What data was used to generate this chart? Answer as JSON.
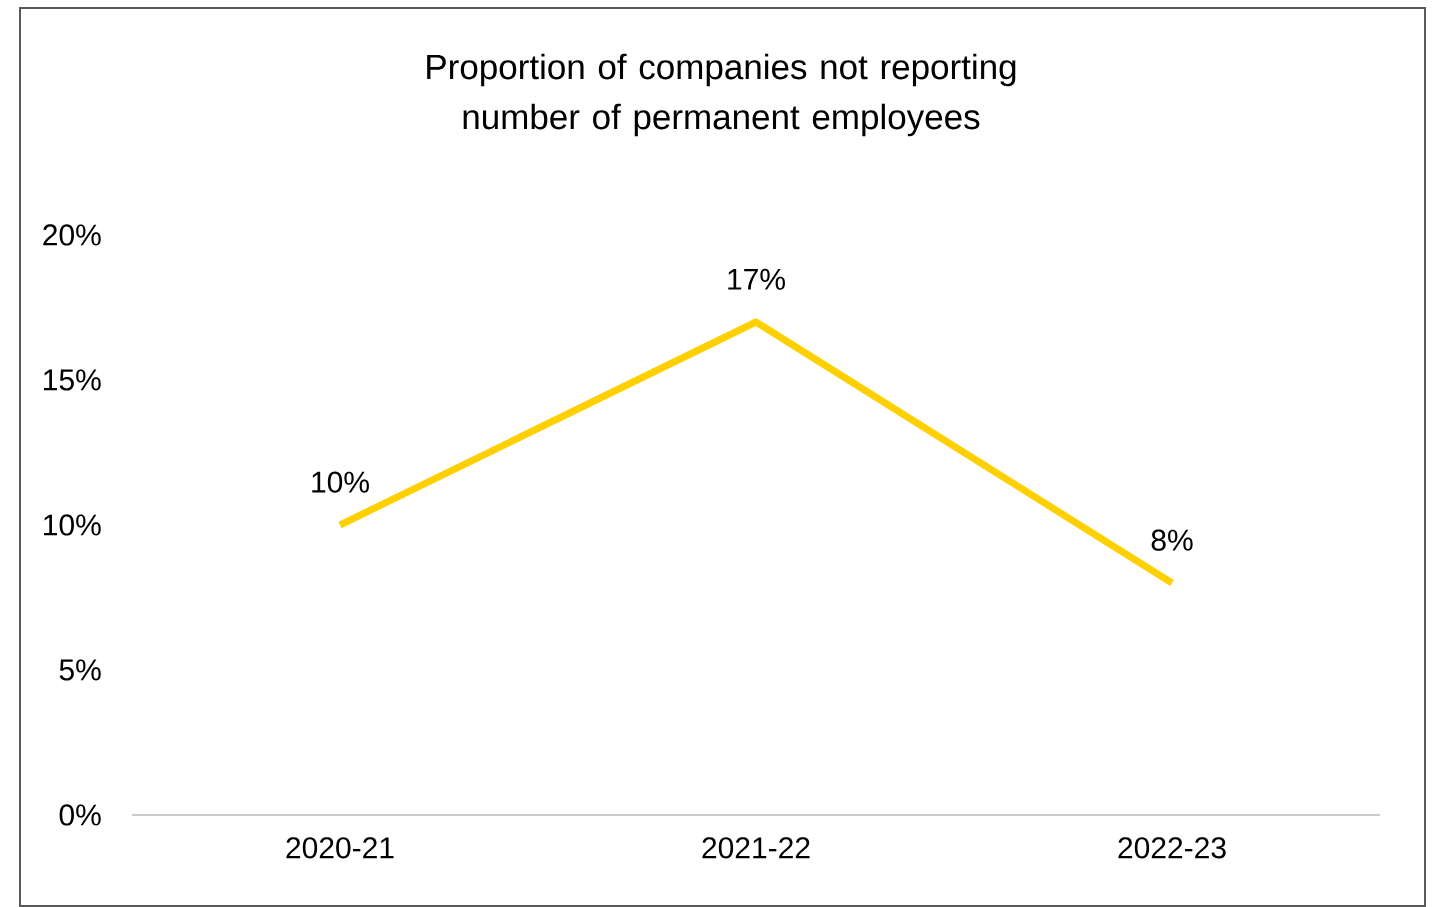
{
  "chart_data": {
    "type": "line",
    "title": "Proportion of companies not reporting number of permanent employees",
    "categories": [
      "2020-21",
      "2021-22",
      "2022-23"
    ],
    "series": [
      {
        "color": "#ffd000",
        "values": [
          10,
          17,
          8
        ],
        "value_labels": [
          "10%",
          "17%",
          "8%"
        ]
      }
    ],
    "ylim": [
      0,
      20
    ],
    "yticks": [
      {
        "value": 0,
        "label": "0%"
      },
      {
        "value": 5,
        "label": "5%"
      },
      {
        "value": 10,
        "label": "10%"
      },
      {
        "value": 15,
        "label": "15%"
      },
      {
        "value": 20,
        "label": "20%"
      }
    ]
  }
}
